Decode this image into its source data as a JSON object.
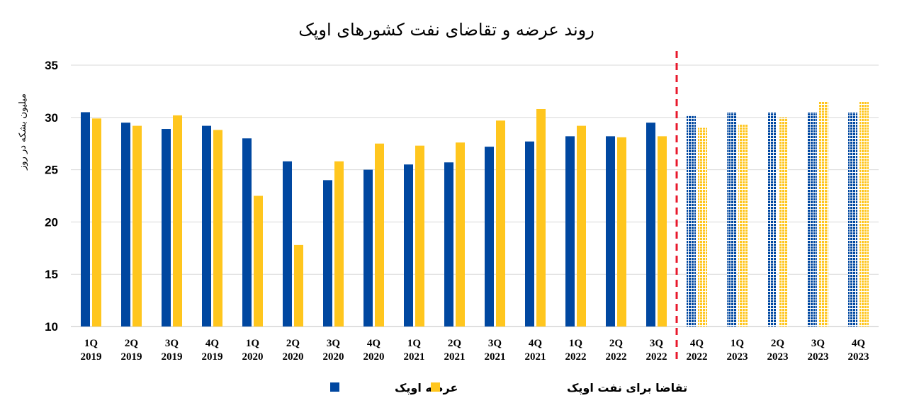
{
  "chart_data": {
    "type": "bar",
    "title": "روند عرضه و تقاضای نفت کشورهای اوپک",
    "ylabel": "میلیون بشکه در روز",
    "xlabel": "",
    "ylim": [
      10,
      35
    ],
    "yticks": [
      10,
      15,
      20,
      25,
      30,
      35
    ],
    "grid": true,
    "legend_position": "bottom-center",
    "categories": [
      [
        "1Q",
        "2019"
      ],
      [
        "2Q",
        "2019"
      ],
      [
        "3Q",
        "2019"
      ],
      [
        "4Q",
        "2019"
      ],
      [
        "1Q",
        "2020"
      ],
      [
        "2Q",
        "2020"
      ],
      [
        "3Q",
        "2020"
      ],
      [
        "4Q",
        "2020"
      ],
      [
        "1Q",
        "2021"
      ],
      [
        "2Q",
        "2021"
      ],
      [
        "3Q",
        "2021"
      ],
      [
        "4Q",
        "2021"
      ],
      [
        "1Q",
        "2022"
      ],
      [
        "2Q",
        "2022"
      ],
      [
        "3Q",
        "2022"
      ],
      [
        "4Q",
        "2022"
      ],
      [
        "1Q",
        "2023"
      ],
      [
        "2Q",
        "2023"
      ],
      [
        "3Q",
        "2023"
      ],
      [
        "4Q",
        "2023"
      ]
    ],
    "forecast_start_index": 15,
    "series": [
      {
        "name": "عرضه اوپک",
        "color": "#0047A0",
        "values": [
          30.5,
          29.5,
          28.9,
          29.2,
          28.0,
          25.8,
          24.0,
          25.0,
          25.5,
          25.7,
          27.2,
          27.7,
          28.2,
          28.2,
          29.5,
          30.2,
          30.5,
          30.5,
          30.5,
          30.5
        ]
      },
      {
        "name": "تقاضا برای نفت اوپک",
        "color": "#FFC61E",
        "values": [
          29.9,
          29.2,
          30.2,
          28.8,
          22.5,
          17.8,
          25.8,
          27.5,
          27.3,
          27.6,
          29.7,
          30.8,
          29.2,
          28.1,
          28.2,
          29.0,
          29.3,
          30.0,
          31.5,
          31.5
        ]
      }
    ],
    "forecast_divider_color": "#E8192C"
  }
}
